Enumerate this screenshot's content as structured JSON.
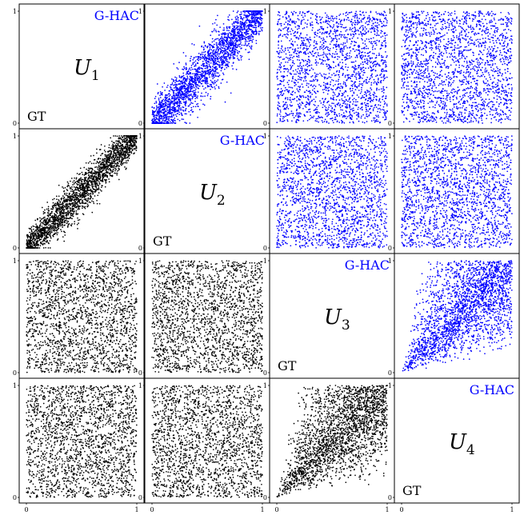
{
  "chart_data": {
    "type": "scatter",
    "title": "",
    "variables": [
      "U1",
      "U2",
      "U3",
      "U4"
    ],
    "diagonal": [
      {
        "name": "U",
        "subscript": "1",
        "upper_label": "G-HAC",
        "lower_label": "GT"
      },
      {
        "name": "U",
        "subscript": "2",
        "upper_label": "G-HAC",
        "lower_label": "GT"
      },
      {
        "name": "U",
        "subscript": "3",
        "upper_label": "G-HAC",
        "lower_label": "GT"
      },
      {
        "name": "U",
        "subscript": "4",
        "upper_label": "G-HAC",
        "lower_label": "GT"
      }
    ],
    "xlim": [
      0,
      1
    ],
    "ylim": [
      0,
      1
    ],
    "x_ticks": [
      "0",
      "1"
    ],
    "y_ticks": [
      "0",
      "1"
    ],
    "grid": false,
    "upper_triangle": {
      "label": "G-HAC",
      "color": "#0000ff"
    },
    "lower_triangle": {
      "label": "GT",
      "color": "#000000"
    },
    "panels": [
      {
        "row": 1,
        "col": 2,
        "series": "G-HAC",
        "dependence": "strong-positive",
        "spread": 0.09,
        "n": 2400
      },
      {
        "row": 1,
        "col": 3,
        "series": "G-HAC",
        "dependence": "independent",
        "n": 2000
      },
      {
        "row": 1,
        "col": 4,
        "series": "G-HAC",
        "dependence": "independent",
        "n": 2000
      },
      {
        "row": 2,
        "col": 1,
        "series": "GT",
        "dependence": "strong-positive",
        "spread": 0.07,
        "n": 2400
      },
      {
        "row": 2,
        "col": 3,
        "series": "G-HAC",
        "dependence": "independent",
        "n": 2000
      },
      {
        "row": 2,
        "col": 4,
        "series": "G-HAC",
        "dependence": "independent",
        "n": 2000
      },
      {
        "row": 3,
        "col": 1,
        "series": "GT",
        "dependence": "independent",
        "n": 2000
      },
      {
        "row": 3,
        "col": 2,
        "series": "GT",
        "dependence": "independent",
        "n": 2000
      },
      {
        "row": 3,
        "col": 4,
        "series": "G-HAC",
        "dependence": "lower-tail",
        "n": 2400
      },
      {
        "row": 4,
        "col": 1,
        "series": "GT",
        "dependence": "independent",
        "n": 2000
      },
      {
        "row": 4,
        "col": 2,
        "series": "GT",
        "dependence": "independent",
        "n": 2000
      },
      {
        "row": 4,
        "col": 3,
        "series": "GT",
        "dependence": "lower-tail",
        "n": 2400
      }
    ]
  }
}
